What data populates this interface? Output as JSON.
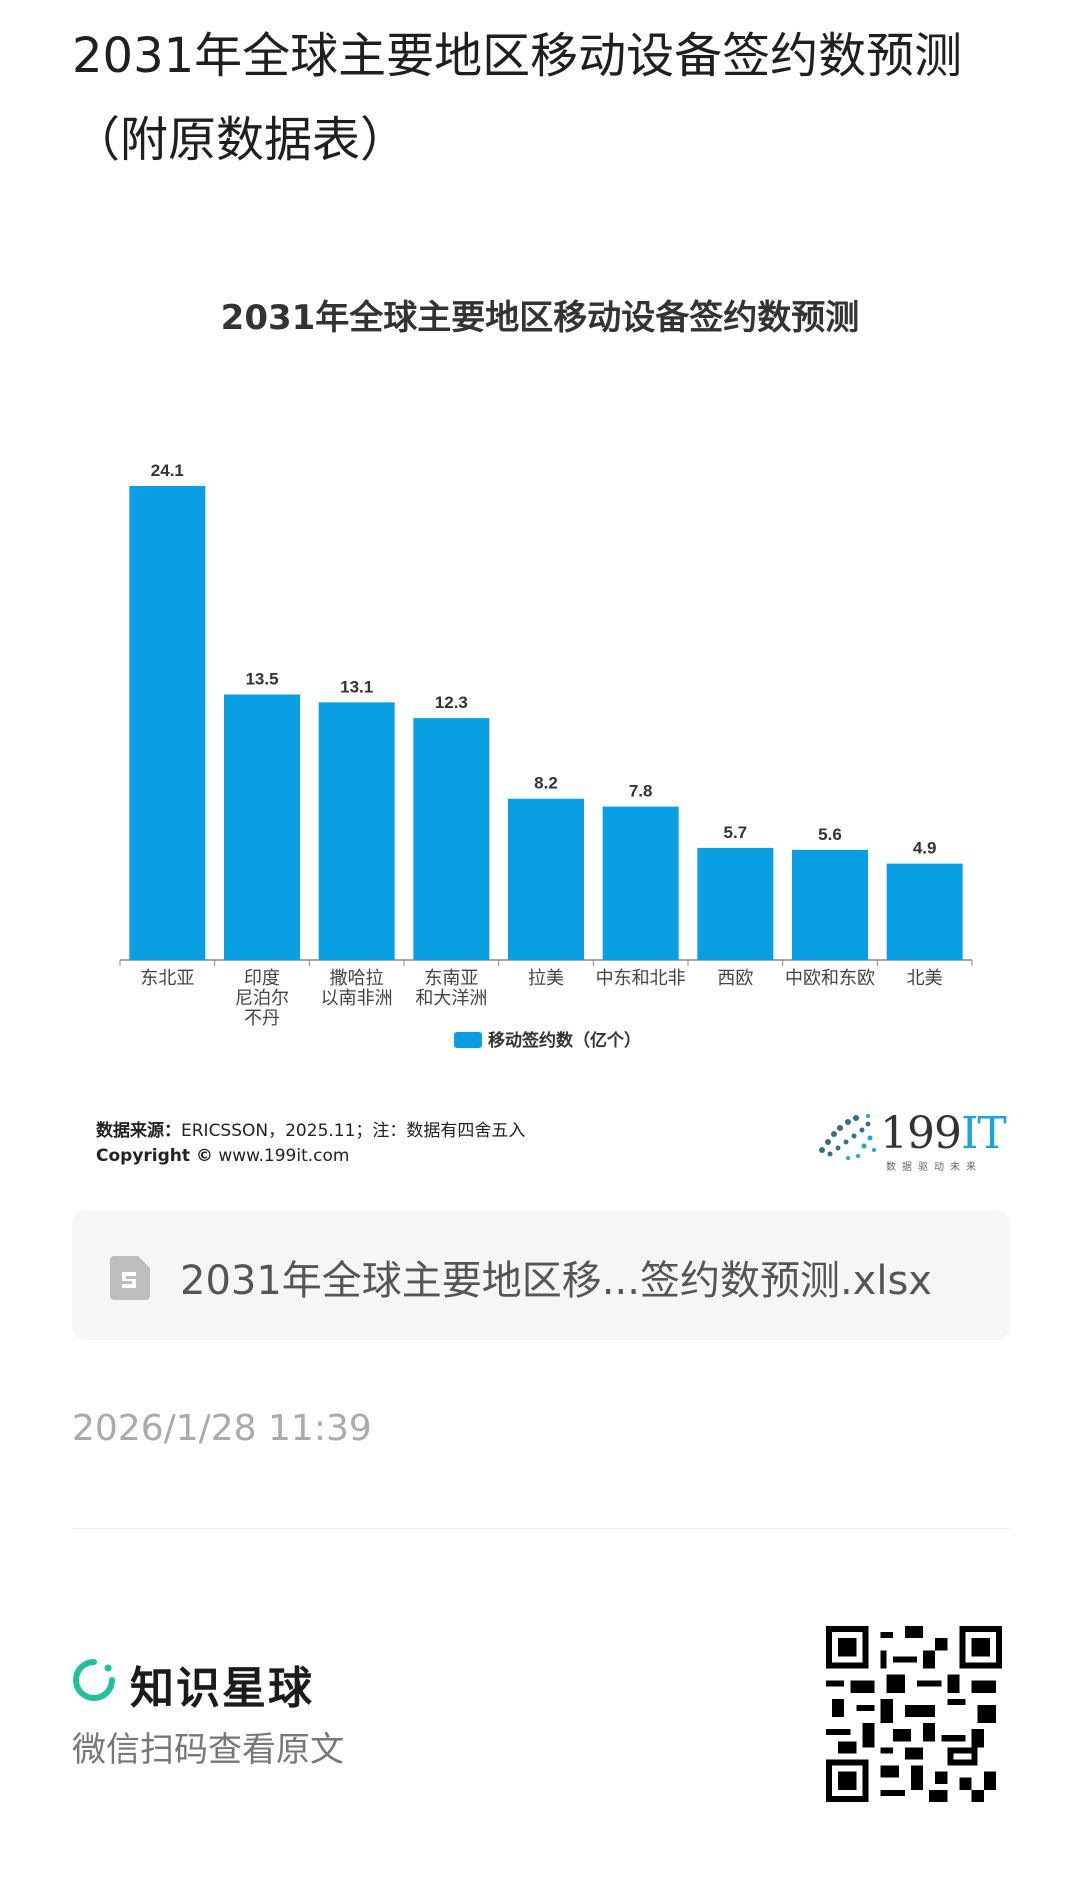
{
  "page": {
    "title": "2031年全球主要地区移动设备签约数预测（附原数据表）"
  },
  "chart_data": {
    "type": "bar",
    "title": "2031年全球主要地区移动设备签约数预测",
    "categories": [
      "东北亚",
      "印度\n尼泊尔\n不丹",
      "撒哈拉\n以南非洲",
      "东南亚\n和大洋洲",
      "拉美",
      "中东和北非",
      "西欧",
      "中欧和东欧",
      "北美"
    ],
    "series": [
      {
        "name": "移动签约数（亿个）",
        "values": [
          24.1,
          13.5,
          13.1,
          12.3,
          8.2,
          7.8,
          5.7,
          5.6,
          4.9
        ]
      }
    ],
    "data_labels": [
      "24.1",
      "13.5",
      "13.1",
      "12.3",
      "8.2",
      "7.8",
      "5.7",
      "5.6",
      "4.9"
    ],
    "ylim": [
      0,
      24.1
    ],
    "grid": false,
    "legend_position": "bottom",
    "bar_color": "#0a9fe3"
  },
  "footer_note": {
    "source_label": "数据来源：",
    "source_text": "ERICSSON，2025.11；注：数据有四舍五入",
    "copyright_label": "Copyright ©",
    "copyright_text": " www.199it.com",
    "logo_text_main": "199",
    "logo_text_accent": "IT",
    "logo_tagline": "数据驱动未来"
  },
  "attachment": {
    "icon": "spreadsheet-file-icon",
    "file_name": "2031年全球主要地区移...签约数预测.xlsx"
  },
  "meta": {
    "timestamp": "2026/1/28 11:39"
  },
  "brand": {
    "name": "知识星球",
    "hint": "微信扫码查看原文",
    "accent_color": "#20c29a"
  }
}
